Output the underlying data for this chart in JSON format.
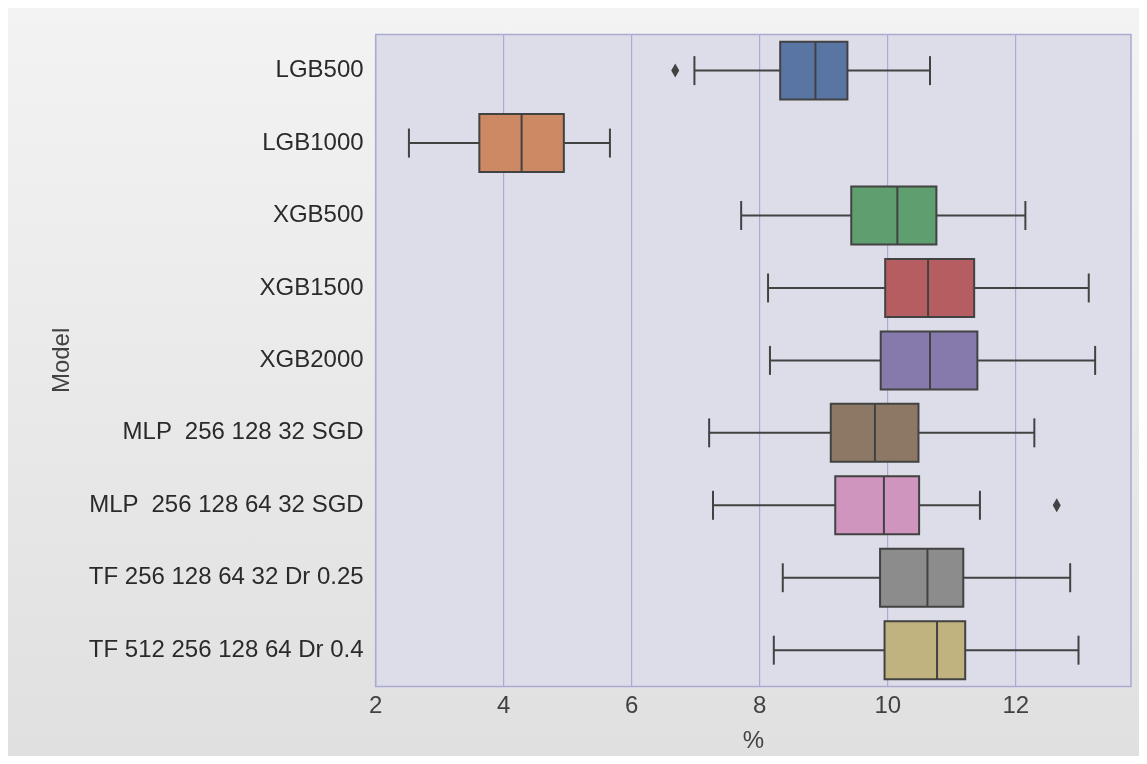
{
  "chart_data": {
    "type": "box",
    "orientation": "horizontal",
    "xlabel": "%",
    "ylabel": "Model",
    "categories": [
      "LGB500",
      "LGB1000",
      "XGB500",
      "XGB1500",
      "XGB2000",
      "MLP  256 128 32 SGD",
      "MLP  256 128 64 32 SGD",
      "TF 256 128 64 32 Dr 0.25",
      "TF 512 256 128 64 Dr 0.4"
    ],
    "colors": [
      "#5975a4",
      "#cc8963",
      "#5f9e6e",
      "#b55d60",
      "#857aab",
      "#8d7866",
      "#d095bf",
      "#8c8c8c",
      "#c1b37f"
    ],
    "boxes": [
      {
        "low": 6.98,
        "q1": 8.32,
        "median": 8.87,
        "q3": 9.37,
        "high": 10.66,
        "outliers": [
          6.68
        ]
      },
      {
        "low": 2.52,
        "q1": 3.62,
        "median": 4.28,
        "q3": 4.94,
        "high": 5.66
      },
      {
        "low": 7.71,
        "q1": 9.43,
        "median": 10.15,
        "q3": 10.76,
        "high": 12.15
      },
      {
        "low": 8.13,
        "q1": 9.96,
        "median": 10.63,
        "q3": 11.35,
        "high": 13.14
      },
      {
        "low": 8.16,
        "q1": 9.89,
        "median": 10.66,
        "q3": 11.4,
        "high": 13.24
      },
      {
        "low": 7.21,
        "q1": 9.11,
        "median": 9.8,
        "q3": 10.48,
        "high": 12.29
      },
      {
        "low": 7.27,
        "q1": 9.18,
        "median": 9.94,
        "q3": 10.49,
        "high": 11.44,
        "outliers": [
          12.64
        ]
      },
      {
        "low": 8.36,
        "q1": 9.88,
        "median": 10.62,
        "q3": 11.18,
        "high": 12.85
      },
      {
        "low": 8.22,
        "q1": 9.95,
        "median": 10.77,
        "q3": 11.21,
        "high": 12.98
      }
    ],
    "xlim": [
      2,
      13.8
    ],
    "xticks": [
      2,
      4,
      6,
      8,
      10,
      12
    ],
    "grid": "x"
  }
}
